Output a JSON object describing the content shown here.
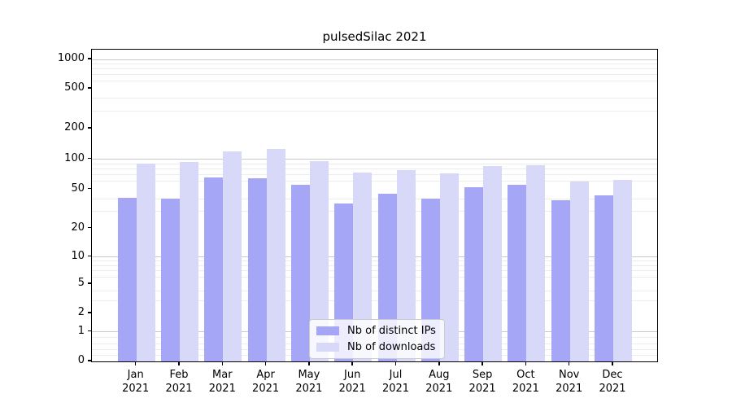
{
  "chart_data": {
    "type": "bar",
    "title": "pulsedSilac 2021",
    "categories": [
      "Jan",
      "Feb",
      "Mar",
      "Apr",
      "May",
      "Jun",
      "Jul",
      "Aug",
      "Sep",
      "Oct",
      "Nov",
      "Dec"
    ],
    "year_label": "2021",
    "series": [
      {
        "name": "Nb of distinct IPs",
        "color": "#a6a6f7",
        "values": [
          41,
          40,
          66,
          64,
          55,
          36,
          45,
          40,
          52,
          55,
          39,
          43
        ]
      },
      {
        "name": "Nb of downloads",
        "color": "#d8d8f8",
        "values": [
          90,
          94,
          120,
          127,
          96,
          74,
          77,
          72,
          85,
          87,
          60,
          62
        ]
      }
    ],
    "y_ticks": [
      0,
      1,
      2,
      5,
      10,
      20,
      50,
      100,
      200,
      500,
      1000
    ],
    "y_scale": "symlog",
    "ylim": [
      0,
      1250
    ],
    "xlabel": "",
    "ylabel": "",
    "grid": true,
    "legend_position": "lower center"
  },
  "colors": {
    "background": "#ffffff",
    "axis": "#000000",
    "grid_minor": "#ececec",
    "grid_major": "#c8c8c8",
    "legend_background": "rgba(255,255,255,0.8)",
    "legend_border": "#cccccc"
  }
}
